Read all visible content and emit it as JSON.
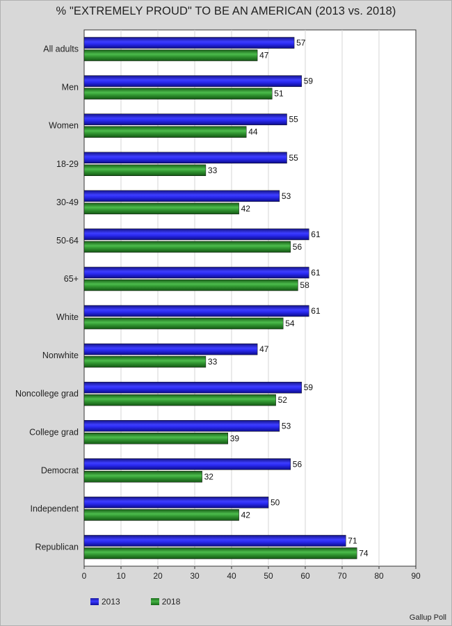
{
  "chart_data": {
    "type": "bar",
    "orientation": "horizontal",
    "title": "% \"EXTREMELY PROUD\" TO BE AN AMERICAN (2013 vs. 2018)",
    "categories": [
      "All adults",
      "Men",
      "Women",
      "18-29",
      "30-49",
      "50-64",
      "65+",
      "White",
      "Nonwhite",
      "Noncollege grad",
      "College grad",
      "Democrat",
      "Independent",
      "Republican"
    ],
    "series": [
      {
        "name": "2013",
        "color": "#2323e0",
        "values": [
          57,
          59,
          55,
          55,
          53,
          61,
          61,
          61,
          47,
          59,
          53,
          56,
          50,
          71
        ]
      },
      {
        "name": "2018",
        "color": "#2e962e",
        "values": [
          47,
          51,
          44,
          33,
          42,
          56,
          58,
          54,
          33,
          52,
          39,
          32,
          42,
          74
        ]
      }
    ],
    "xlim": [
      0,
      90
    ],
    "xticks": [
      0,
      10,
      20,
      30,
      40,
      50,
      60,
      70,
      80,
      90
    ],
    "grid": true,
    "legend_position": "bottom-left",
    "source": "Gallup Poll"
  }
}
